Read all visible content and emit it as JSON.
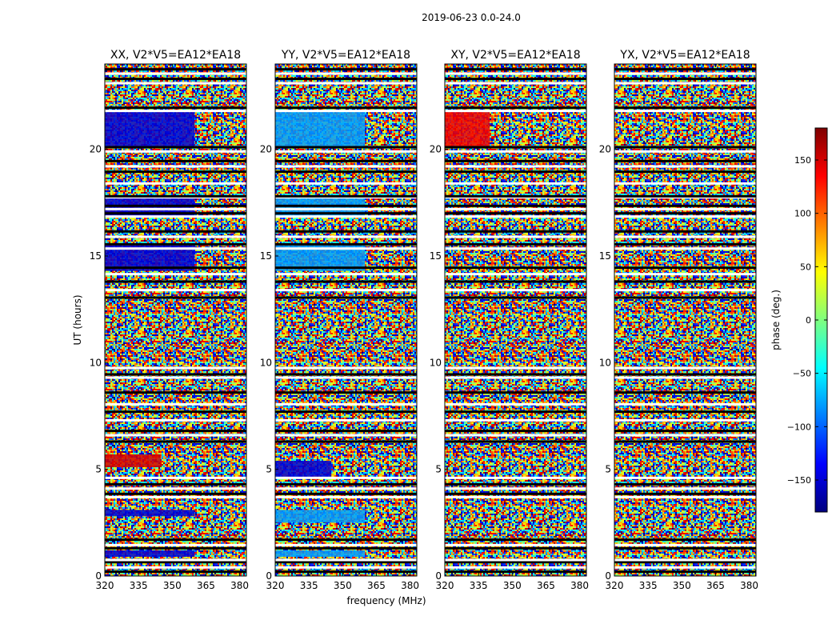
{
  "figure": {
    "suptitle": "2019-06-23 0.0-24.0",
    "ylabel": "UT (hours)",
    "xlabel": "frequency (MHz)"
  },
  "colorbar": {
    "label": "phase (deg.)",
    "range": [
      -180,
      180
    ],
    "ticks": [
      150,
      100,
      50,
      0,
      -50,
      -100,
      -150
    ],
    "tick_labels": [
      "150",
      "100",
      "50",
      "0",
      "−50",
      "−100",
      "−150"
    ],
    "colormap": "jet",
    "colors": [
      "#00007f",
      "#0000ff",
      "#007fff",
      "#00ffff",
      "#7fff7f",
      "#ffff00",
      "#ff7f00",
      "#ff0000",
      "#7f0000"
    ]
  },
  "chart_data": [
    {
      "type": "heatmap",
      "title": "XX, V2*V5=EA12*EA18",
      "xlim": [
        320,
        383
      ],
      "ylim": [
        0,
        24
      ],
      "xticks": [
        320,
        335,
        350,
        365,
        380
      ],
      "yticks": [
        0,
        5,
        10,
        15,
        20
      ],
      "value_units": "phase (deg.)",
      "coherent_phase_blocks": [
        {
          "ut": [
            20.1,
            21.8
          ],
          "freq": [
            320,
            360
          ],
          "phase_deg": -150
        },
        {
          "ut": [
            16.8,
            17.7
          ],
          "freq": [
            320,
            360
          ],
          "phase_deg": -150
        },
        {
          "ut": [
            14.3,
            15.6
          ],
          "freq": [
            320,
            360
          ],
          "phase_deg": -150
        },
        {
          "ut": [
            2.8,
            3.1
          ],
          "freq": [
            320,
            360
          ],
          "phase_deg": -150
        },
        {
          "ut": [
            0.9,
            1.2
          ],
          "freq": [
            320,
            360
          ],
          "phase_deg": -150
        },
        {
          "ut": [
            5.1,
            5.7
          ],
          "freq": [
            320,
            345
          ],
          "phase_deg": 150
        }
      ]
    },
    {
      "type": "heatmap",
      "title": "YY, V2*V5=EA12*EA18",
      "xlim": [
        320,
        383
      ],
      "ylim": [
        0,
        24
      ],
      "xticks": [
        320,
        335,
        350,
        365,
        380
      ],
      "yticks": [
        0,
        5,
        10,
        15,
        20
      ],
      "value_units": "phase (deg.)",
      "coherent_phase_blocks": [
        {
          "ut": [
            20.1,
            21.8
          ],
          "freq": [
            320,
            360
          ],
          "phase_deg": -80
        },
        {
          "ut": [
            16.8,
            17.7
          ],
          "freq": [
            320,
            360
          ],
          "phase_deg": -80
        },
        {
          "ut": [
            14.3,
            15.6
          ],
          "freq": [
            320,
            360
          ],
          "phase_deg": -80
        },
        {
          "ut": [
            2.5,
            3.1
          ],
          "freq": [
            320,
            360
          ],
          "phase_deg": -80
        },
        {
          "ut": [
            0.9,
            1.2
          ],
          "freq": [
            320,
            360
          ],
          "phase_deg": -80
        },
        {
          "ut": [
            4.6,
            5.4
          ],
          "freq": [
            320,
            345
          ],
          "phase_deg": -150
        }
      ]
    },
    {
      "type": "heatmap",
      "title": "XY, V2*V5=EA12*EA18",
      "xlim": [
        320,
        383
      ],
      "ylim": [
        0,
        24
      ],
      "xticks": [
        320,
        335,
        350,
        365,
        380
      ],
      "yticks": [
        0,
        5,
        10,
        15,
        20
      ],
      "value_units": "phase (deg.)",
      "coherent_phase_blocks": [
        {
          "ut": [
            20.1,
            21.8
          ],
          "freq": [
            320,
            340
          ],
          "phase_deg": 140
        }
      ]
    },
    {
      "type": "heatmap",
      "title": "YX, V2*V5=EA12*EA18",
      "xlim": [
        320,
        383
      ],
      "ylim": [
        0,
        24
      ],
      "xticks": [
        320,
        335,
        350,
        365,
        380
      ],
      "yticks": [
        0,
        5,
        10,
        15,
        20
      ],
      "value_units": "phase (deg.)",
      "coherent_phase_blocks": []
    }
  ],
  "flagged_ut_hours": [
    0.2,
    0.4,
    0.65,
    0.75,
    1.3,
    1.45,
    1.7,
    3.7,
    3.85,
    4.1,
    4.3,
    4.6,
    6.3,
    6.6,
    6.8,
    7.3,
    7.7,
    8.05,
    8.6,
    9.3,
    9.45,
    9.75,
    13.05,
    13.4,
    13.8,
    14.15,
    14.45,
    15.35,
    15.55,
    15.9,
    16.15,
    16.85,
    17.0,
    17.2,
    17.35,
    17.75,
    17.8,
    18.4,
    18.95,
    19.2,
    19.45,
    19.9,
    20.1,
    21.8,
    21.95,
    23.1,
    23.3,
    23.55,
    23.75
  ]
}
